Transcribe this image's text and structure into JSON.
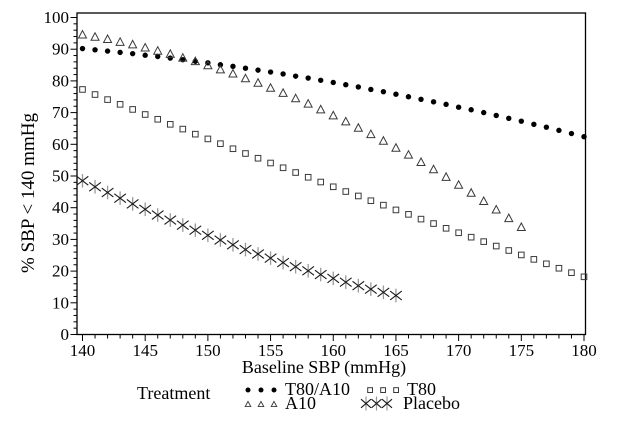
{
  "legend": {
    "title": "Treatment"
  },
  "chart_data": {
    "type": "scatter",
    "title": "",
    "xlabel": "Baseline SBP (mmHg)",
    "ylabel": "% SBP < 140 mmHg",
    "xlim": [
      140,
      180
    ],
    "ylim": [
      0,
      100
    ],
    "x_major_tick_step": 5,
    "x_minor_tick_step": 1,
    "y_major_tick_step": 10,
    "y_minor_tick_step": 2,
    "grid": false,
    "legend_position": "bottom",
    "marker_colors": {
      "point": "#000000",
      "open_stroke": "#3a3a3a",
      "asterisk_diagonal": "#1a1a1a",
      "asterisk_vertical": "#999999"
    },
    "series": [
      {
        "name": "T80/A10",
        "marker": "filled-circle",
        "x_start": 140,
        "x_step": 1,
        "values": [
          90.2,
          89.8,
          89.4,
          89,
          88.6,
          88.1,
          87.7,
          87.2,
          86.7,
          86.2,
          85.7,
          85.1,
          84.6,
          84,
          83.4,
          82.8,
          82.2,
          81.5,
          80.9,
          80.2,
          79.5,
          78.8,
          78.1,
          77.3,
          76.6,
          75.8,
          75,
          74.2,
          73.4,
          72.6,
          71.7,
          70.9,
          70,
          69.1,
          68.2,
          67.3,
          66.3,
          65.4,
          64.4,
          63.4,
          62.4
        ]
      },
      {
        "name": "A10",
        "marker": "open-triangle",
        "x_start": 140,
        "x_step": 1,
        "values": [
          94.5,
          93.8,
          93.1,
          92.2,
          91.4,
          90.4,
          89.4,
          88.4,
          87.2,
          86.1,
          84.8,
          83.5,
          82.2,
          80.7,
          79.3,
          77.7,
          76.1,
          74.4,
          72.7,
          70.9,
          69,
          67.1,
          65.1,
          63.1,
          61,
          58.8,
          56.6,
          54.3,
          52,
          49.6,
          47.1,
          44.6,
          42,
          39.3,
          36.6,
          33.8
        ]
      },
      {
        "name": "T80",
        "marker": "open-square",
        "x_start": 140,
        "x_step": 1,
        "values": [
          77.3,
          75.7,
          74.1,
          72.6,
          71,
          69.4,
          67.9,
          66.3,
          64.8,
          63.2,
          61.7,
          60.2,
          58.6,
          57.1,
          55.6,
          54.1,
          52.6,
          51.1,
          49.6,
          48.1,
          46.6,
          45.1,
          43.7,
          42.2,
          40.8,
          39.3,
          37.9,
          36.4,
          35,
          33.5,
          32.1,
          30.7,
          29.3,
          27.9,
          26.5,
          25.1,
          23.7,
          22.3,
          20.9,
          19.5,
          18.2
        ]
      },
      {
        "name": "Placebo",
        "marker": "asterisk",
        "x_start": 140,
        "x_step": 1,
        "values": [
          48.5,
          46.6,
          44.8,
          43,
          41.2,
          39.5,
          37.7,
          36.1,
          34.5,
          32.9,
          31.3,
          29.8,
          28.3,
          26.8,
          25.4,
          24.1,
          22.7,
          21.4,
          20.1,
          18.9,
          17.7,
          16.5,
          15.4,
          14.3,
          13.3,
          12.3
        ]
      }
    ]
  }
}
